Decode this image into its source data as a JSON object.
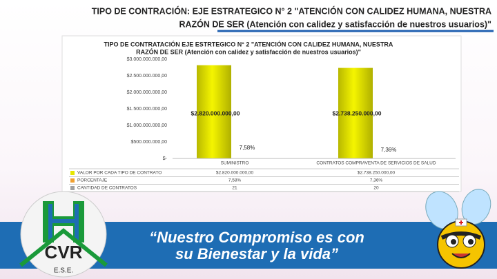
{
  "header": {
    "title_lines": [
      "TIPO DE CONTRACIÓN: EJE ESTRATEGICO N° 2 \"ATENCIÓN CON CALIDEZ HUMANA, NUESTRA",
      "RAZÓN DE SER (Atención con calidez y satisfacción de nuestros usuarios)\""
    ]
  },
  "chart_data": {
    "type": "bar",
    "title_lines": [
      "TIPO DE CONTRATACIÓN EJE ESTRTEGICO N° 2 \"ATENCIÓN CON CALIDEZ HUMANA, NUESTRA",
      "RAZÓN DE SER (Atención con calidez y satisfacción de nuestros usuarios)\""
    ],
    "categories": [
      "SUMINISTRO",
      "CONTRATOS COMPRAVENTA DE SERVICIOS DE SALUD"
    ],
    "series": [
      {
        "name": "VALOR POR CADA TIPO DE CONTRATO",
        "color": "#e6e600",
        "values": [
          2820000000,
          2738250000
        ],
        "value_labels": [
          "$2.820.000.000,00",
          "$2.738.250.000,00"
        ]
      },
      {
        "name": "PORCENTAJE",
        "color": "#f0a030",
        "values": [
          7.58,
          7.36
        ],
        "value_labels": [
          "7,58%",
          "7,36%"
        ]
      },
      {
        "name": "CANTIDAD DE CONTRATOS",
        "color": "#a0a0a0",
        "values": [
          21,
          20
        ]
      }
    ],
    "ylim": [
      0,
      3000000000
    ],
    "yticks": [
      {
        "value": 0,
        "label": "$-"
      },
      {
        "value": 500000000,
        "label": "$500.000.000,00"
      },
      {
        "value": 1000000000,
        "label": "$1.000.000.000,00"
      },
      {
        "value": 1500000000,
        "label": "$1.500.000.000,00"
      },
      {
        "value": 2000000000,
        "label": "$2.000.000.000,00"
      },
      {
        "value": 2500000000,
        "label": "$2.500.000.000,00"
      },
      {
        "value": 3000000000,
        "label": "$3.000.000.000,00"
      }
    ],
    "grid": false
  },
  "banner": {
    "slogan_lines": [
      "“Nuestro Compromiso es con",
      "su Bienestar y la vida”"
    ],
    "logo_letters": "CVR",
    "logo_suffix": "E.S.E."
  }
}
